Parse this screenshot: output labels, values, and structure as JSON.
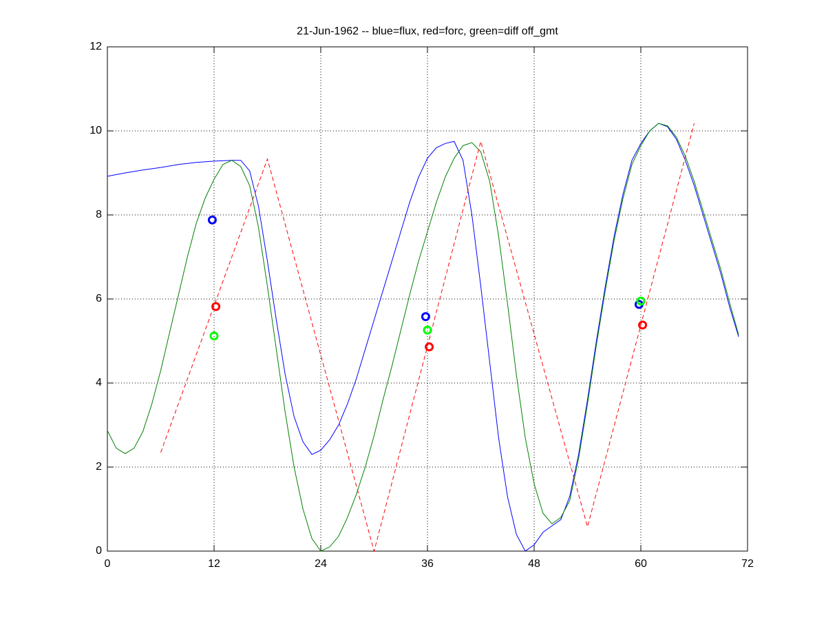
{
  "chart_data": {
    "type": "line",
    "title": "21-Jun-1962 -- blue=flux, red=forc, green=diff off_gmt",
    "xlim": [
      0,
      72
    ],
    "xticks": [
      0,
      12,
      24,
      36,
      48,
      60,
      72
    ],
    "ylim": [
      0,
      12
    ],
    "yticks": [
      0,
      2,
      4,
      6,
      8,
      10,
      12
    ],
    "grid": true,
    "series": [
      {
        "color": "#0000ff",
        "linestyle": "solid",
        "x": [
          0,
          2,
          4,
          6,
          8,
          10,
          12,
          14,
          15,
          16,
          17,
          18,
          19,
          20,
          21,
          22,
          23,
          24,
          25,
          26,
          27,
          28,
          29,
          30,
          31,
          32,
          33,
          34,
          35,
          36,
          37,
          38,
          39,
          40,
          41,
          42,
          43,
          44,
          45,
          46,
          47,
          48,
          49,
          50,
          51,
          52,
          53,
          54,
          55,
          56,
          57,
          58,
          59,
          60,
          61,
          62,
          63,
          64,
          65,
          66,
          67,
          68,
          69,
          70,
          71
        ],
        "values": [
          8.92,
          9.0,
          9.07,
          9.13,
          9.2,
          9.25,
          9.28,
          9.3,
          9.3,
          9.05,
          8.2,
          6.9,
          5.5,
          4.2,
          3.2,
          2.6,
          2.3,
          2.4,
          2.65,
          3.0,
          3.5,
          4.1,
          4.8,
          5.5,
          6.2,
          6.9,
          7.6,
          8.3,
          8.9,
          9.35,
          9.6,
          9.7,
          9.75,
          9.3,
          8.0,
          6.3,
          4.5,
          2.7,
          1.3,
          0.4,
          0.0,
          0.15,
          0.45,
          0.6,
          0.75,
          1.3,
          2.3,
          3.6,
          5.0,
          6.3,
          7.5,
          8.5,
          9.3,
          9.7,
          10.0,
          10.18,
          10.1,
          9.8,
          9.3,
          8.7,
          8.0,
          7.3,
          6.6,
          5.8,
          5.1
        ]
      },
      {
        "color": "#008000",
        "linestyle": "solid",
        "x": [
          0,
          1,
          2,
          3,
          4,
          5,
          6,
          7,
          8,
          9,
          10,
          11,
          12,
          13,
          14,
          15,
          16,
          17,
          18,
          19,
          20,
          21,
          22,
          23,
          24,
          25,
          26,
          27,
          28,
          29,
          30,
          31,
          32,
          33,
          34,
          35,
          36,
          37,
          38,
          39,
          40,
          41,
          42,
          43,
          44,
          45,
          46,
          47,
          48,
          49,
          50,
          51,
          52,
          53,
          54,
          55,
          56,
          57,
          58,
          59,
          60,
          61,
          62,
          63,
          64,
          65,
          66,
          67,
          68,
          69,
          70,
          71
        ],
        "values": [
          2.87,
          2.45,
          2.32,
          2.45,
          2.85,
          3.5,
          4.3,
          5.2,
          6.1,
          7.0,
          7.8,
          8.4,
          8.85,
          9.2,
          9.3,
          9.15,
          8.7,
          7.7,
          6.3,
          4.8,
          3.3,
          2.0,
          1.0,
          0.3,
          0.0,
          0.1,
          0.35,
          0.8,
          1.35,
          2.0,
          2.75,
          3.6,
          4.4,
          5.25,
          6.1,
          6.9,
          7.6,
          8.3,
          8.9,
          9.35,
          9.65,
          9.72,
          9.5,
          8.8,
          7.5,
          5.9,
          4.2,
          2.7,
          1.6,
          0.9,
          0.65,
          0.8,
          1.2,
          2.2,
          3.5,
          4.9,
          6.2,
          7.4,
          8.4,
          9.2,
          9.65,
          10.0,
          10.18,
          10.12,
          9.85,
          9.4,
          8.8,
          8.1,
          7.4,
          6.7,
          5.9,
          5.15
        ]
      },
      {
        "color": "#ff0000",
        "linestyle": "dashed",
        "x": [
          6,
          18,
          30,
          42,
          54,
          66
        ],
        "values": [
          2.35,
          9.33,
          0,
          9.75,
          0.58,
          10.18
        ]
      },
      {
        "color": "#0000ff",
        "linestyle": "none",
        "marker": "o",
        "x": [
          11.8,
          35.8,
          59.8
        ],
        "values": [
          7.88,
          5.58,
          5.87
        ]
      },
      {
        "color": "#ff0000",
        "linestyle": "none",
        "marker": "o",
        "x": [
          12.2,
          36.2,
          60.2
        ],
        "values": [
          5.82,
          4.86,
          5.38
        ]
      },
      {
        "color": "#00ff00",
        "linestyle": "none",
        "marker": "o",
        "x": [
          12,
          36,
          60
        ],
        "values": [
          5.12,
          5.26,
          5.95
        ]
      }
    ]
  }
}
